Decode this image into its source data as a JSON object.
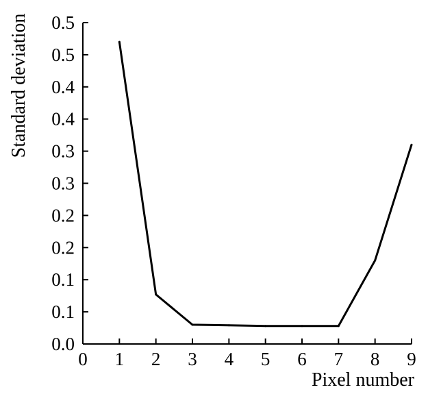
{
  "chart_data": {
    "type": "line",
    "xlabel": "Pixel number",
    "ylabel": "Standard deviation",
    "x_ticks": [
      "0",
      "1",
      "2",
      "3",
      "4",
      "5",
      "6",
      "7",
      "8",
      "9"
    ],
    "y_ticks": [
      "0.0",
      "0.1",
      "0.1",
      "0.2",
      "0.2",
      "0.3",
      "0.3",
      "0.4",
      "0.4",
      "0.5",
      "0.5"
    ],
    "xlim": [
      0,
      9
    ],
    "ylim": [
      0,
      0.5
    ],
    "grid": false,
    "series": [
      {
        "x": [
          1,
          2,
          3,
          4,
          5,
          6,
          7,
          8,
          9
        ],
        "y": [
          0.47,
          0.077,
          0.03,
          0.029,
          0.028,
          0.028,
          0.028,
          0.13,
          0.31
        ]
      }
    ]
  }
}
